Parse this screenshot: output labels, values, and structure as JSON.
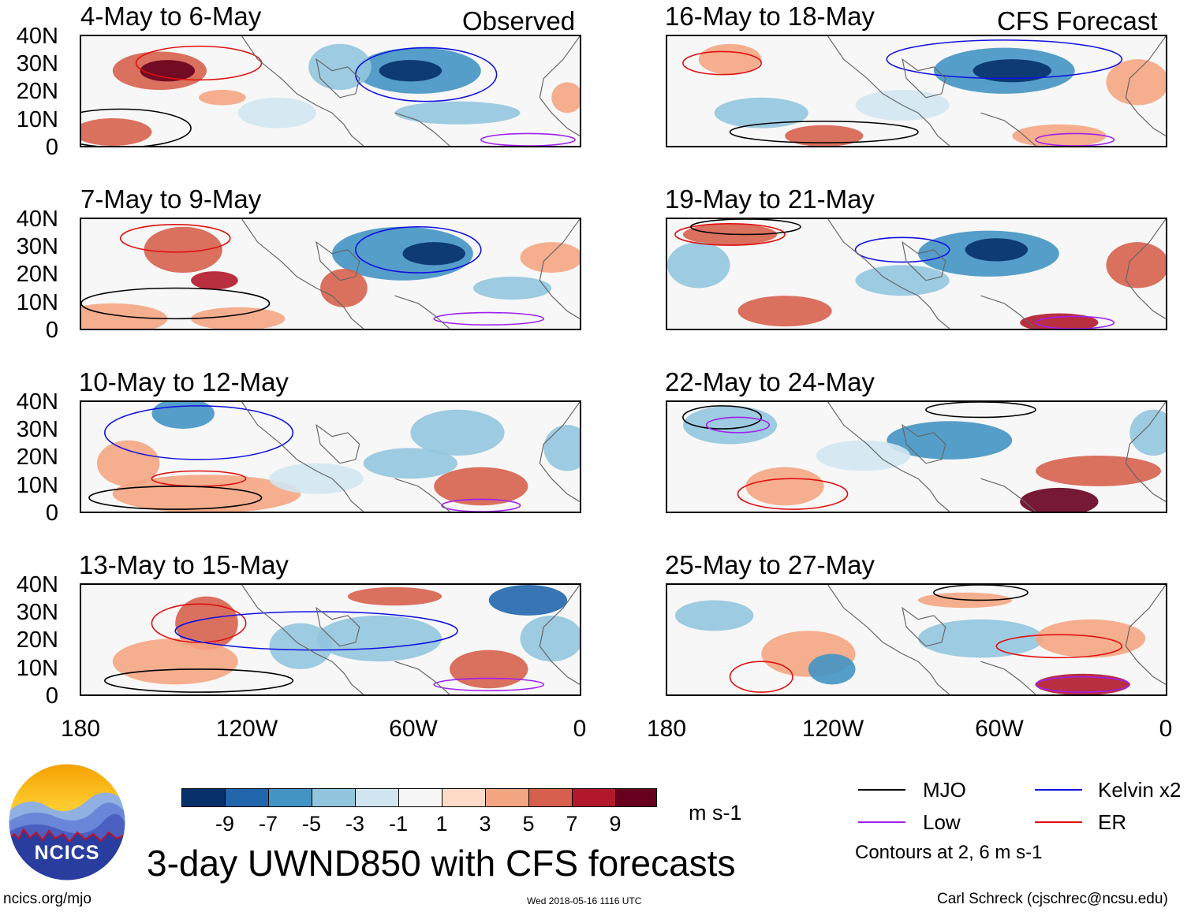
{
  "colors": {
    "mjo": "#000000",
    "kelvin": "#1010e0",
    "low": "#a020f0",
    "er": "#e01010",
    "scale": [
      "#08306b",
      "#2166ac",
      "#4393c3",
      "#92c5de",
      "#d1e5f0",
      "#f7f7f7",
      "#fddbc7",
      "#f4a582",
      "#d6604d",
      "#b2182b",
      "#67001f"
    ]
  },
  "headers": {
    "observed": "Observed",
    "forecast": "CFS Forecast"
  },
  "panels": [
    {
      "title": "4-May to 6-May"
    },
    {
      "title": "7-May to 9-May"
    },
    {
      "title": "10-May to 12-May"
    },
    {
      "title": "13-May to 15-May"
    },
    {
      "title": "16-May to 18-May"
    },
    {
      "title": "19-May to 21-May"
    },
    {
      "title": "22-May to 24-May"
    },
    {
      "title": "25-May to 27-May"
    }
  ],
  "yaxis": [
    "40N",
    "30N",
    "20N",
    "10N",
    "0"
  ],
  "xaxis": [
    "180",
    "120W",
    "60W",
    "0"
  ],
  "colorbar": {
    "labels": [
      "-9",
      "-7",
      "-5",
      "-3",
      "-1",
      "1",
      "3",
      "5",
      "7",
      "9"
    ],
    "units": "m s-1"
  },
  "legend": {
    "mjo": "MJO",
    "kelvin": "Kelvin x2",
    "low": "Low",
    "er": "ER",
    "note": "Contours at 2, 6 m s-1"
  },
  "logo": {
    "text": "NCICS"
  },
  "footer": {
    "main_title": "3-day UWND850 with CFS forecasts",
    "url": "ncics.org/mjo",
    "timestamp": "Wed 2018-05-16 1116 UTC",
    "credit": "Carl Schreck (cjschrec@ncsu.edu)"
  }
}
